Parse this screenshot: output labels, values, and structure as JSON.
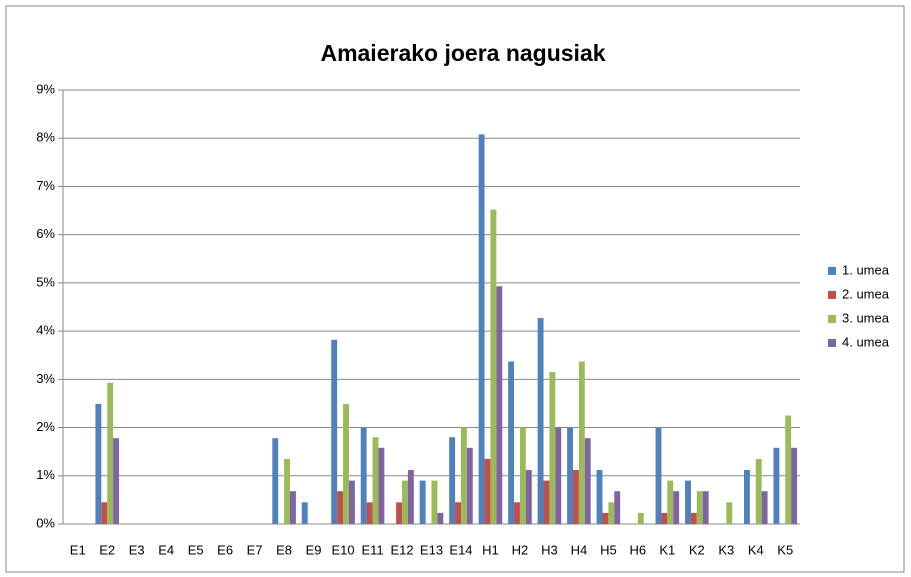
{
  "chart_data": {
    "type": "bar",
    "title": "Amaierako joera nagusiak",
    "categories": [
      "E1",
      "E2",
      "E3",
      "E4",
      "E5",
      "E6",
      "E7",
      "E8",
      "E9",
      "E10",
      "E11",
      "E12",
      "E13",
      "E14",
      "H1",
      "H2",
      "H3",
      "H4",
      "H5",
      "H6",
      "K1",
      "K2",
      "K3",
      "K4",
      "K5"
    ],
    "series": [
      {
        "name": "1. umea",
        "color": "#4f81bd",
        "values": [
          0,
          2.49,
          0,
          0,
          0,
          0,
          0,
          1.78,
          0.45,
          3.82,
          2.0,
          0,
          0.9,
          1.8,
          8.08,
          3.37,
          4.27,
          2.0,
          1.12,
          0,
          2.0,
          0.9,
          0,
          1.12,
          1.58
        ]
      },
      {
        "name": "2. umea",
        "color": "#c0504d",
        "values": [
          0,
          0.45,
          0,
          0,
          0,
          0,
          0,
          0,
          0,
          0.68,
          0.45,
          0.45,
          0,
          0.45,
          1.35,
          0.45,
          0.9,
          1.12,
          0.23,
          0,
          0.23,
          0.23,
          0,
          0,
          0
        ]
      },
      {
        "name": "3. umea",
        "color": "#9bbb59",
        "values": [
          0,
          2.93,
          0,
          0,
          0,
          0,
          0,
          1.35,
          0,
          2.49,
          1.8,
          0.9,
          0.9,
          2.0,
          6.52,
          2.0,
          3.15,
          3.37,
          0.45,
          0.23,
          0.9,
          0.68,
          0.45,
          1.35,
          2.25
        ]
      },
      {
        "name": "4. umea",
        "color": "#8064a2",
        "values": [
          0,
          1.78,
          0,
          0,
          0,
          0,
          0,
          0.68,
          0,
          0.9,
          1.58,
          1.12,
          0.23,
          1.58,
          4.93,
          1.12,
          2.0,
          1.78,
          0.68,
          0,
          0.68,
          0.68,
          0,
          0.68,
          1.58
        ]
      }
    ],
    "ylim": [
      0,
      9
    ],
    "yticks": [
      {
        "value": 0,
        "label": "0%"
      },
      {
        "value": 1,
        "label": "1%"
      },
      {
        "value": 2,
        "label": "2%"
      },
      {
        "value": 3,
        "label": "3%"
      },
      {
        "value": 4,
        "label": "4%"
      },
      {
        "value": 5,
        "label": "5%"
      },
      {
        "value": 6,
        "label": "6%"
      },
      {
        "value": 7,
        "label": "7%"
      },
      {
        "value": 8,
        "label": "8%"
      },
      {
        "value": 9,
        "label": "9%"
      }
    ],
    "grid": true,
    "legend": "right"
  }
}
